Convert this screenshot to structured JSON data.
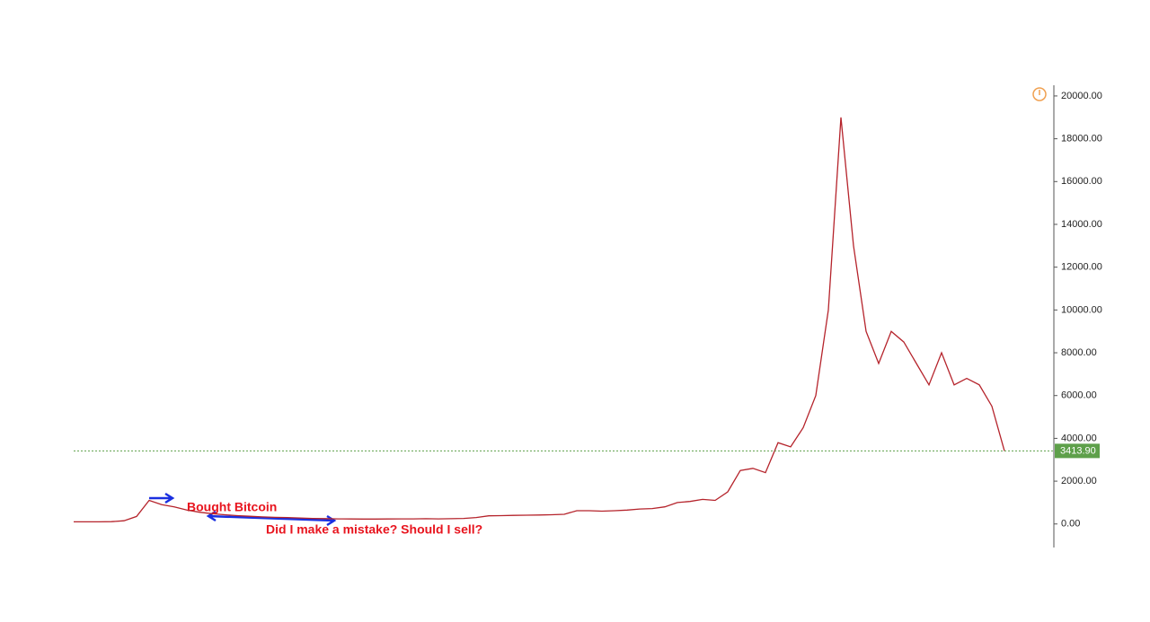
{
  "chart_data": {
    "type": "line",
    "values": [
      100,
      100,
      100,
      110,
      150,
      350,
      1100,
      900,
      800,
      650,
      550,
      480,
      430,
      390,
      360,
      330,
      310,
      300,
      280,
      260,
      250,
      240,
      235,
      230,
      230,
      235,
      240,
      240,
      245,
      240,
      245,
      260,
      300,
      380,
      390,
      400,
      410,
      420,
      430,
      450,
      620,
      620,
      600,
      620,
      650,
      700,
      720,
      800,
      1000,
      1050,
      1150,
      1100,
      1500,
      2500,
      2600,
      2400,
      3800,
      3600,
      4500,
      6000,
      10000,
      19000,
      13000,
      9000,
      7500,
      9000,
      8500,
      7500,
      6500,
      8000,
      6500,
      6800,
      6500,
      5500,
      3414
    ],
    "color": "#b5232b",
    "ylim": [
      -1100,
      20500
    ],
    "yticks": [
      {
        "value": 0,
        "label": "0.00"
      },
      {
        "value": 2000,
        "label": "2000.00"
      },
      {
        "value": 4000,
        "label": "4000.00"
      },
      {
        "value": 6000,
        "label": "6000.00"
      },
      {
        "value": 8000,
        "label": "8000.00"
      },
      {
        "value": 10000,
        "label": "10000.00"
      },
      {
        "value": 12000,
        "label": "12000.00"
      },
      {
        "value": 14000,
        "label": "14000.00"
      },
      {
        "value": 16000,
        "label": "16000.00"
      },
      {
        "value": 18000,
        "label": "18000.00"
      },
      {
        "value": 20000,
        "label": "20000.00"
      }
    ],
    "last_price": {
      "value": 3413.9,
      "label": "3413.90",
      "color": "#5ea04a"
    },
    "annotations": [
      "Bought Bitcoin",
      "Did I make a mistake? Should I sell?"
    ]
  }
}
